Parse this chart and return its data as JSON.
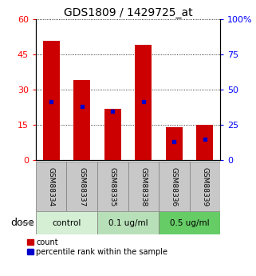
{
  "title": "GDS1809 / 1429725_at",
  "samples": [
    "GSM88334",
    "GSM88337",
    "GSM88335",
    "GSM88338",
    "GSM88336",
    "GSM88339"
  ],
  "count_values": [
    51,
    34,
    22,
    49,
    14,
    15
  ],
  "percentile_values": [
    25,
    23,
    21,
    25,
    8,
    9
  ],
  "bar_width": 0.55,
  "bar_color": "#cc0000",
  "percentile_color": "#0000cc",
  "ylim_left": [
    0,
    60
  ],
  "ylim_right": [
    0,
    100
  ],
  "yticks_left": [
    0,
    15,
    30,
    45,
    60
  ],
  "yticks_right": [
    0,
    25,
    50,
    75,
    100
  ],
  "groups": [
    {
      "label": "control",
      "span": [
        0,
        2
      ],
      "color": "#d4efd4"
    },
    {
      "label": "0.1 ug/ml",
      "span": [
        2,
        4
      ],
      "color": "#b8e0b8"
    },
    {
      "label": "0.5 ug/ml",
      "span": [
        4,
        6
      ],
      "color": "#66cc66"
    }
  ],
  "tick_bg_color": "#c8c8c8",
  "title_fontsize": 10,
  "tick_fontsize": 8,
  "sample_fontsize": 6.5,
  "group_fontsize": 7.5,
  "legend_fontsize": 7,
  "dose_fontsize": 9
}
